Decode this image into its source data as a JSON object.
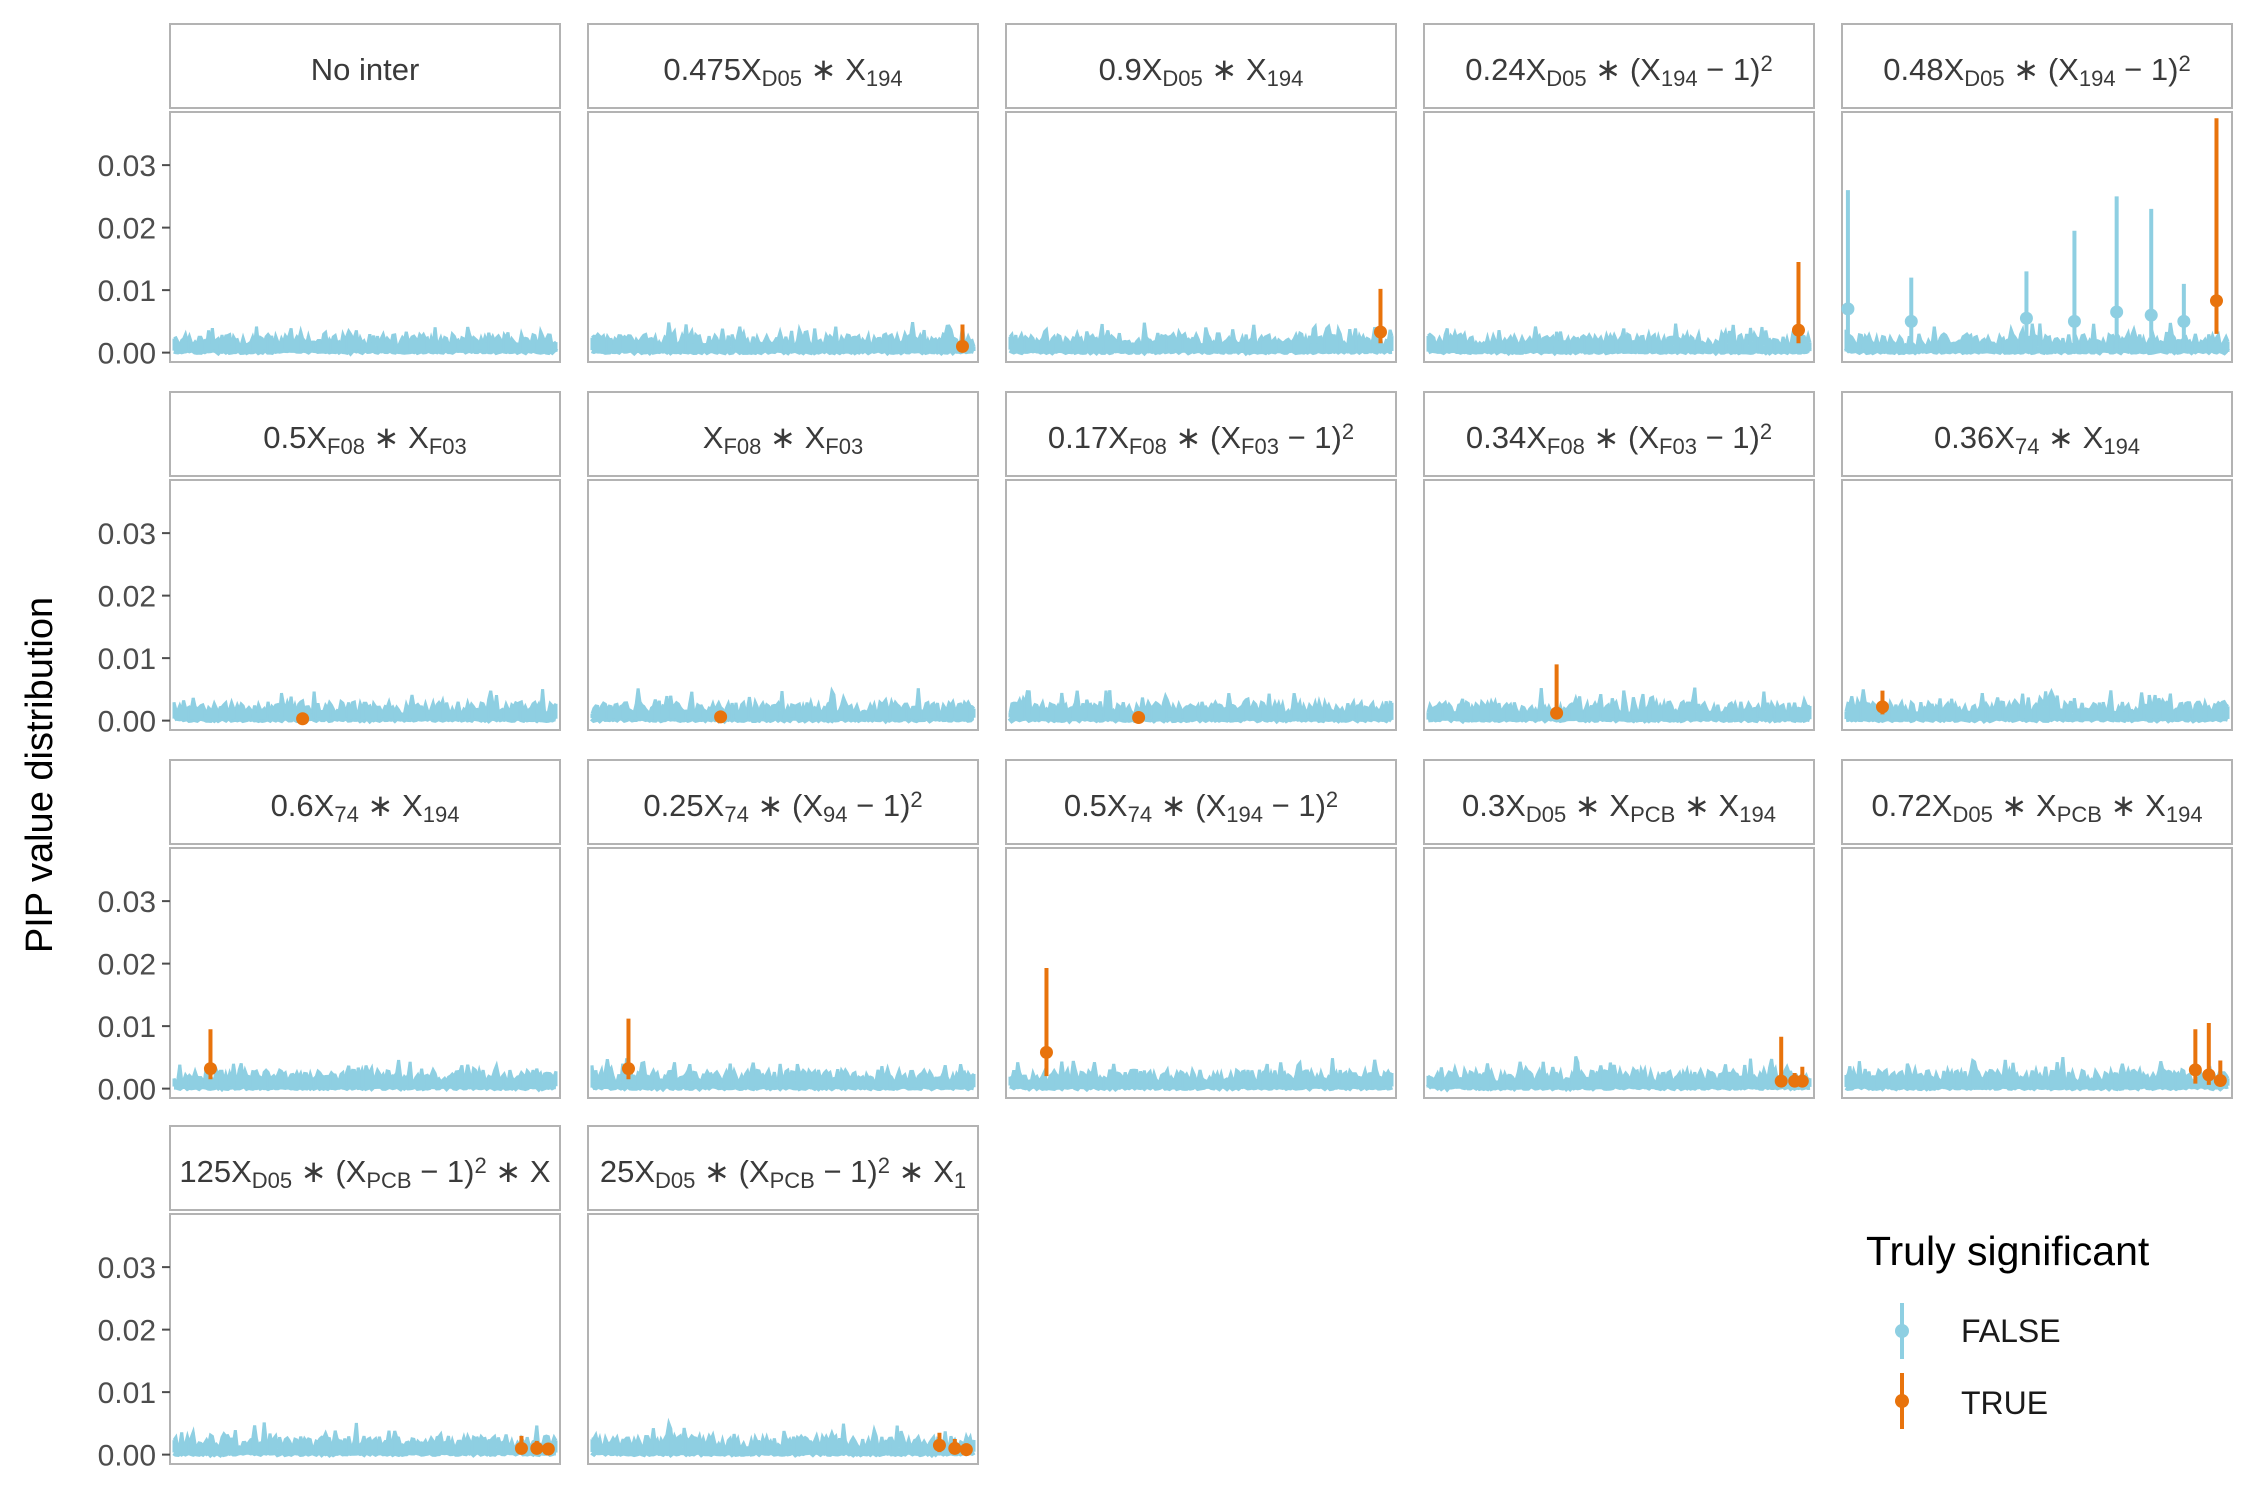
{
  "chart_data": {
    "type": "scatter",
    "description_type": "faceted pointrange / linerange chart",
    "ylabel": "PIP value distribution",
    "xlabel": "",
    "ylim": [
      -0.0015,
      0.0385
    ],
    "yticks": [
      0.0,
      0.01,
      0.02,
      0.03
    ],
    "ytick_labels": [
      "0.00",
      "0.01",
      "0.02",
      "0.03"
    ],
    "grid": false,
    "x_axis_ticks": false,
    "n_predictors": 200,
    "legend": {
      "title": "Truly significant",
      "position": "right",
      "entries": [
        {
          "label": "FALSE",
          "color": "#8ecfe2"
        },
        {
          "label": "TRUE",
          "color": "#e8730c"
        }
      ]
    },
    "facets": [
      {
        "title": [
          {
            "t": "No inter"
          }
        ],
        "false_points": [],
        "true_points": []
      },
      {
        "title": [
          {
            "t": "0.475X"
          },
          {
            "sub": "D05"
          },
          {
            "t": " ∗ X"
          },
          {
            "sub": "194"
          }
        ],
        "false_points": [],
        "true_points": [
          {
            "x": 194,
            "lo": 0.0005,
            "y": 0.001,
            "hi": 0.0045
          }
        ]
      },
      {
        "title": [
          {
            "t": "0.9X"
          },
          {
            "sub": "D05"
          },
          {
            "t": " ∗ X"
          },
          {
            "sub": "194"
          }
        ],
        "false_points": [],
        "true_points": [
          {
            "x": 194,
            "lo": 0.0015,
            "y": 0.0033,
            "hi": 0.0102
          }
        ]
      },
      {
        "title": [
          {
            "t": "0.24X"
          },
          {
            "sub": "D05"
          },
          {
            "t": " ∗ (X"
          },
          {
            "sub": "194"
          },
          {
            "t": " − 1)"
          },
          {
            "sup": "2"
          }
        ],
        "false_points": [],
        "true_points": [
          {
            "x": 194,
            "lo": 0.0015,
            "y": 0.0036,
            "hi": 0.0145
          }
        ]
      },
      {
        "title": [
          {
            "t": "0.48X"
          },
          {
            "sub": "D05"
          },
          {
            "t": " ∗ (X"
          },
          {
            "sub": "194"
          },
          {
            "t": " − 1)"
          },
          {
            "sup": "2"
          }
        ],
        "false_points": [
          {
            "x": 2,
            "lo": 0.0005,
            "y": 0.007,
            "hi": 0.026
          },
          {
            "x": 35,
            "lo": 0.0005,
            "y": 0.005,
            "hi": 0.012
          },
          {
            "x": 95,
            "lo": 0.0005,
            "y": 0.0055,
            "hi": 0.013
          },
          {
            "x": 120,
            "lo": 0.0005,
            "y": 0.005,
            "hi": 0.0195
          },
          {
            "x": 142,
            "lo": 0.0005,
            "y": 0.0065,
            "hi": 0.025
          },
          {
            "x": 160,
            "lo": 0.0005,
            "y": 0.006,
            "hi": 0.023
          },
          {
            "x": 177,
            "lo": 0.0005,
            "y": 0.005,
            "hi": 0.011
          }
        ],
        "true_points": [
          {
            "x": 194,
            "lo": 0.003,
            "y": 0.0083,
            "hi": 0.0375
          }
        ]
      },
      {
        "title": [
          {
            "t": "0.5X"
          },
          {
            "sub": "F08"
          },
          {
            "t": " ∗ X"
          },
          {
            "sub": "F03"
          }
        ],
        "false_points": [],
        "true_points": [
          {
            "x": 68,
            "lo": 0.0001,
            "y": 0.0003,
            "hi": 0.001
          }
        ]
      },
      {
        "title": [
          {
            "t": "X"
          },
          {
            "sub": "F08"
          },
          {
            "t": " ∗ X"
          },
          {
            "sub": "F03"
          }
        ],
        "false_points": [],
        "true_points": [
          {
            "x": 68,
            "lo": 0.0002,
            "y": 0.0006,
            "hi": 0.0012
          }
        ]
      },
      {
        "title": [
          {
            "t": "0.17X"
          },
          {
            "sub": "F08"
          },
          {
            "t": " ∗ (X"
          },
          {
            "sub": "F03"
          },
          {
            "t": " − 1)"
          },
          {
            "sup": "2"
          }
        ],
        "false_points": [],
        "true_points": [
          {
            "x": 68,
            "lo": 0.0002,
            "y": 0.0005,
            "hi": 0.0012
          }
        ]
      },
      {
        "title": [
          {
            "t": "0.34X"
          },
          {
            "sub": "F08"
          },
          {
            "t": " ∗ (X"
          },
          {
            "sub": "F03"
          },
          {
            "t": " − 1)"
          },
          {
            "sup": "2"
          }
        ],
        "false_points": [],
        "true_points": [
          {
            "x": 68,
            "lo": 0.0005,
            "y": 0.0012,
            "hi": 0.009
          }
        ]
      },
      {
        "title": [
          {
            "t": "0.36X"
          },
          {
            "sub": "74"
          },
          {
            "t": " ∗ X"
          },
          {
            "sub": "194"
          }
        ],
        "false_points": [],
        "true_points": [
          {
            "x": 20,
            "lo": 0.001,
            "y": 0.0022,
            "hi": 0.0048
          }
        ]
      },
      {
        "title": [
          {
            "t": "0.6X"
          },
          {
            "sub": "74"
          },
          {
            "t": " ∗ X"
          },
          {
            "sub": "194"
          }
        ],
        "false_points": [],
        "true_points": [
          {
            "x": 20,
            "lo": 0.0015,
            "y": 0.0032,
            "hi": 0.0095
          }
        ]
      },
      {
        "title": [
          {
            "t": "0.25X"
          },
          {
            "sub": "74"
          },
          {
            "t": " ∗ (X"
          },
          {
            "sub": "94"
          },
          {
            "t": " − 1)"
          },
          {
            "sup": "2"
          }
        ],
        "false_points": [],
        "true_points": [
          {
            "x": 20,
            "lo": 0.0015,
            "y": 0.0032,
            "hi": 0.0112
          }
        ]
      },
      {
        "title": [
          {
            "t": "0.5X"
          },
          {
            "sub": "74"
          },
          {
            "t": " ∗ (X"
          },
          {
            "sub": "194"
          },
          {
            "t": " − 1)"
          },
          {
            "sup": "2"
          }
        ],
        "false_points": [],
        "true_points": [
          {
            "x": 20,
            "lo": 0.002,
            "y": 0.0058,
            "hi": 0.0193
          }
        ]
      },
      {
        "title": [
          {
            "t": "0.3X"
          },
          {
            "sub": "D05"
          },
          {
            "t": " ∗ X"
          },
          {
            "sub": "PCB"
          },
          {
            "t": " ∗ X"
          },
          {
            "sub": "194"
          }
        ],
        "false_points": [],
        "true_points": [
          {
            "x": 185,
            "lo": 0.0003,
            "y": 0.0012,
            "hi": 0.0083
          },
          {
            "x": 192,
            "lo": 0.0003,
            "y": 0.0012,
            "hi": 0.0025
          },
          {
            "x": 196,
            "lo": 0.0003,
            "y": 0.0012,
            "hi": 0.0035
          }
        ]
      },
      {
        "title": [
          {
            "t": "0.72X"
          },
          {
            "sub": "D05"
          },
          {
            "t": " ∗ X"
          },
          {
            "sub": "PCB"
          },
          {
            "t": " ∗ X"
          },
          {
            "sub": "194"
          }
        ],
        "false_points": [],
        "true_points": [
          {
            "x": 183,
            "lo": 0.0008,
            "y": 0.003,
            "hi": 0.0095
          },
          {
            "x": 190,
            "lo": 0.0006,
            "y": 0.0022,
            "hi": 0.0105
          },
          {
            "x": 196,
            "lo": 0.0005,
            "y": 0.0013,
            "hi": 0.0045
          }
        ]
      },
      {
        "title": [
          {
            "t": "125X"
          },
          {
            "sub": "D05"
          },
          {
            "t": " ∗ (X"
          },
          {
            "sub": "PCB"
          },
          {
            "t": " − 1)"
          },
          {
            "sup": "2"
          },
          {
            "t": " ∗ X"
          }
        ],
        "false_points": [],
        "true_points": [
          {
            "x": 182,
            "lo": 0.0002,
            "y": 0.001,
            "hi": 0.003
          },
          {
            "x": 190,
            "lo": 0.0002,
            "y": 0.001,
            "hi": 0.0022
          },
          {
            "x": 196,
            "lo": 0.0002,
            "y": 0.0009,
            "hi": 0.0018
          }
        ]
      },
      {
        "title": [
          {
            "t": "25X"
          },
          {
            "sub": "D05"
          },
          {
            "t": " ∗ (X"
          },
          {
            "sub": "PCB"
          },
          {
            "t": " − 1)"
          },
          {
            "sup": "2"
          },
          {
            "t": " ∗ X"
          },
          {
            "sub": "1"
          }
        ],
        "false_points": [],
        "true_points": [
          {
            "x": 182,
            "lo": 0.0004,
            "y": 0.0015,
            "hi": 0.0035
          },
          {
            "x": 190,
            "lo": 0.0003,
            "y": 0.001,
            "hi": 0.0025
          },
          {
            "x": 196,
            "lo": 0.0002,
            "y": 0.0008,
            "hi": 0.0018
          }
        ]
      }
    ]
  }
}
